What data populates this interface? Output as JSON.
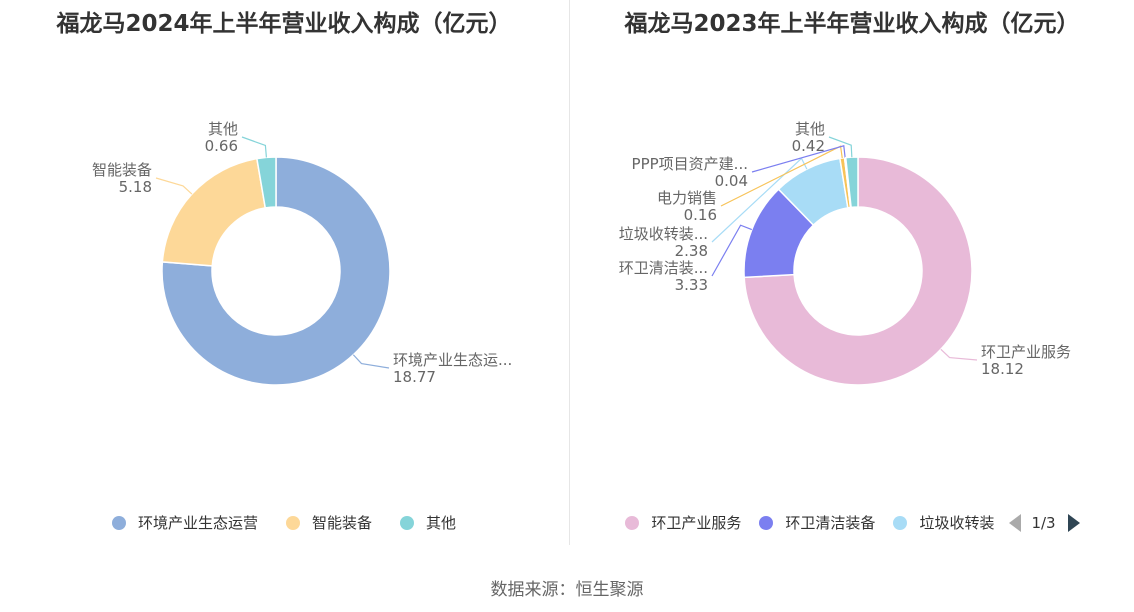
{
  "source": "数据来源：恒生聚源",
  "chart_data": [
    {
      "type": "pie",
      "title": "福龙马2024年上半年营业收入构成（亿元）",
      "series": [
        {
          "name": "环境产业生态运营",
          "label": "环境产业生态运...",
          "value": 18.77,
          "value_label": "18.77",
          "color": "#8eaedb"
        },
        {
          "name": "智能装备",
          "label": "智能装备",
          "value": 5.18,
          "value_label": "5.18",
          "color": "#fdd898"
        },
        {
          "name": "其他",
          "label": "其他",
          "value": 0.66,
          "value_label": "0.66",
          "color": "#85d4d9"
        }
      ],
      "legend": {
        "placement": "bottom",
        "items": [
          "环境产业生态运营",
          "智能装备",
          "其他"
        ]
      }
    },
    {
      "type": "pie",
      "title": "福龙马2023年上半年营业收入构成（亿元）",
      "series": [
        {
          "name": "环卫产业服务",
          "label": "环卫产业服务",
          "value": 18.12,
          "value_label": "18.12",
          "color": "#e8bad8"
        },
        {
          "name": "环卫清洁装备",
          "label": "环卫清洁装...",
          "value": 3.33,
          "value_label": "3.33",
          "color": "#7b7ff0"
        },
        {
          "name": "垃圾收转装备",
          "label": "垃圾收转装...",
          "value": 2.38,
          "value_label": "2.38",
          "color": "#a8dcf6"
        },
        {
          "name": "电力销售",
          "label": "电力销售",
          "value": 0.16,
          "value_label": "0.16",
          "color": "#f7c358"
        },
        {
          "name": "PPP项目资产建设",
          "label": "PPP项目资产建...",
          "value": 0.04,
          "value_label": "0.04",
          "color": "#7b7ff0"
        },
        {
          "name": "其他",
          "label": "其他",
          "value": 0.42,
          "value_label": "0.42",
          "color": "#85d4d9"
        }
      ],
      "legend": {
        "placement": "bottom",
        "items": [
          {
            "label": "环卫产业服务",
            "color": "#e8bad8"
          },
          {
            "label": "环卫清洁装备",
            "color": "#7b7ff0"
          },
          {
            "label": "垃圾收转装",
            "color": "#a8dcf6"
          }
        ],
        "page": "1/3"
      }
    }
  ]
}
